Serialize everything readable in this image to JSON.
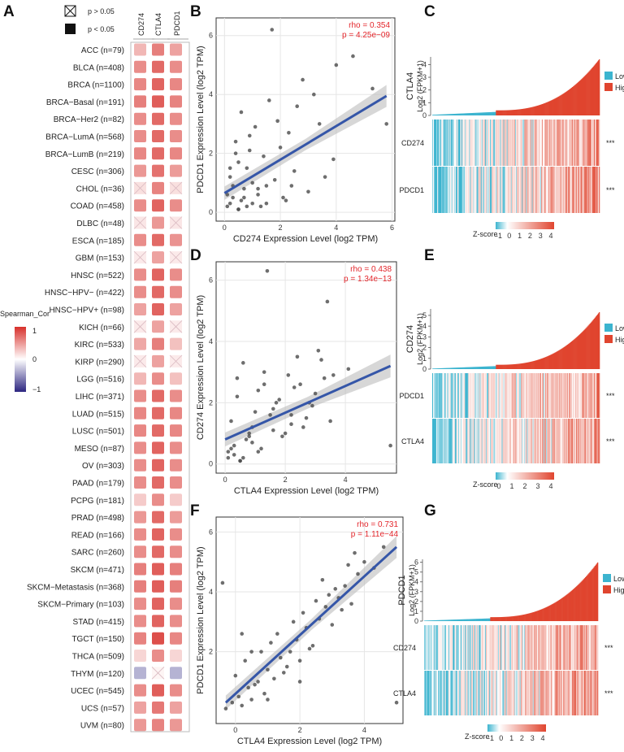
{
  "panels": {
    "A": {
      "letter": "A",
      "legend_ns": "p > 0.05",
      "legend_sig": "p <  0.05",
      "color_title": "Spearman_Cor",
      "color_ticks": [
        "1",
        "0",
        "−1"
      ],
      "genes": [
        "CD274",
        "CTLA4",
        "PDCD1"
      ],
      "cancers": [
        "ACC (n=79)",
        "BLCA (n=408)",
        "BRCA (n=1100)",
        "BRCA−Basal (n=191)",
        "BRCA−Her2 (n=82)",
        "BRCA−LumA (n=568)",
        "BRCA−LumB (n=219)",
        "CESC (n=306)",
        "CHOL (n=36)",
        "COAD (n=458)",
        "DLBC (n=48)",
        "ESCA (n=185)",
        "GBM (n=153)",
        "HNSC (n=522)",
        "HNSC−HPV− (n=422)",
        "HNSC−HPV+ (n=98)",
        "KICH (n=66)",
        "KIRC (n=533)",
        "KIRP (n=290)",
        "LGG (n=516)",
        "LIHC (n=371)",
        "LUAD (n=515)",
        "LUSC (n=501)",
        "MESO (n=87)",
        "OV (n=303)",
        "PAAD (n=179)",
        "PCPG (n=181)",
        "PRAD (n=498)",
        "READ (n=166)",
        "SARC (n=260)",
        "SKCM (n=471)",
        "SKCM−Metastasis (n=368)",
        "SKCM−Primary (n=103)",
        "STAD (n=415)",
        "TGCT (n=150)",
        "THCA (n=509)",
        "THYM (n=120)",
        "UCEC (n=545)",
        "UCS (n=57)",
        "UVM (n=80)"
      ],
      "chart_data": {
        "type": "heatmap",
        "rows": [
          "ACC",
          "BLCA",
          "BRCA",
          "BRCA-Basal",
          "BRCA-Her2",
          "BRCA-LumA",
          "BRCA-LumB",
          "CESC",
          "CHOL",
          "COAD",
          "DLBC",
          "ESCA",
          "GBM",
          "HNSC",
          "HNSC-HPV-",
          "HNSC-HPV+",
          "KICH",
          "KIRC",
          "KIRP",
          "LGG",
          "LIHC",
          "LUAD",
          "LUSC",
          "MESO",
          "OV",
          "PAAD",
          "PCPG",
          "PRAD",
          "READ",
          "SARC",
          "SKCM",
          "SKCM-Metastasis",
          "SKCM-Primary",
          "STAD",
          "TGCT",
          "THCA",
          "THYM",
          "UCEC",
          "UCS",
          "UVM"
        ],
        "cols": [
          "CD274",
          "CTLA4",
          "PDCD1"
        ],
        "values": [
          [
            0.35,
            0.62,
            0.45
          ],
          [
            0.55,
            0.72,
            0.55
          ],
          [
            0.58,
            0.75,
            0.58
          ],
          [
            0.62,
            0.78,
            0.6
          ],
          [
            0.55,
            0.72,
            0.55
          ],
          [
            0.55,
            0.72,
            0.55
          ],
          [
            0.58,
            0.72,
            0.58
          ],
          [
            0.5,
            0.68,
            0.48
          ],
          [
            0.15,
            0.6,
            0.15
          ],
          [
            0.55,
            0.75,
            0.55
          ],
          [
            0.12,
            0.5,
            0.12
          ],
          [
            0.55,
            0.72,
            0.52
          ],
          [
            0.1,
            0.45,
            0.1
          ],
          [
            0.55,
            0.75,
            0.55
          ],
          [
            0.55,
            0.72,
            0.55
          ],
          [
            0.45,
            0.75,
            0.45
          ],
          [
            0.1,
            0.45,
            0.1
          ],
          [
            0.42,
            0.62,
            0.3
          ],
          [
            0.1,
            0.45,
            0.1
          ],
          [
            0.35,
            0.55,
            0.3
          ],
          [
            0.55,
            0.72,
            0.55
          ],
          [
            0.58,
            0.72,
            0.58
          ],
          [
            0.58,
            0.72,
            0.58
          ],
          [
            0.55,
            0.75,
            0.55
          ],
          [
            0.55,
            0.75,
            0.55
          ],
          [
            0.55,
            0.72,
            0.55
          ],
          [
            0.25,
            0.55,
            0.25
          ],
          [
            0.5,
            0.72,
            0.48
          ],
          [
            0.55,
            0.75,
            0.55
          ],
          [
            0.55,
            0.72,
            0.55
          ],
          [
            0.62,
            0.78,
            0.62
          ],
          [
            0.62,
            0.78,
            0.62
          ],
          [
            0.55,
            0.75,
            0.55
          ],
          [
            0.55,
            0.75,
            0.55
          ],
          [
            0.6,
            0.85,
            0.58
          ],
          [
            0.2,
            0.55,
            0.2
          ],
          [
            -0.35,
            0.05,
            -0.35
          ],
          [
            0.55,
            0.78,
            0.55
          ],
          [
            0.45,
            0.65,
            0.45
          ],
          [
            0.5,
            0.6,
            0.5
          ]
        ],
        "not_significant": [
          [
            8,
            0
          ],
          [
            8,
            2
          ],
          [
            10,
            0
          ],
          [
            10,
            2
          ],
          [
            12,
            0
          ],
          [
            12,
            2
          ],
          [
            16,
            0
          ],
          [
            16,
            2
          ],
          [
            18,
            0
          ],
          [
            18,
            2
          ],
          [
            36,
            1
          ]
        ],
        "color_range": [
          -1,
          1
        ]
      }
    },
    "B": {
      "letter": "B",
      "rho": "rho = 0.354",
      "p": "p = 4.25e−09",
      "xlabel": "CD274 Expression Level (log2 TPM)",
      "ylabel": "PDCD1 Expression Level (log2 TPM)",
      "xticks": [
        "0",
        "2",
        "4",
        "6"
      ],
      "yticks": [
        "0",
        "2",
        "4",
        "6"
      ],
      "chart_data": {
        "type": "scatter",
        "xlim": [
          -0.3,
          6.1
        ],
        "ylim": [
          -0.3,
          6.6
        ],
        "fit": {
          "x0": 0,
          "y0": 0.65,
          "x1": 5.8,
          "y1": 3.95
        },
        "x": [
          0.1,
          0.3,
          0.5,
          0.7,
          1.0,
          0.2,
          0.4,
          0.8,
          1.2,
          1.5,
          0.6,
          0.9,
          1.8,
          2.2,
          0.3,
          0.5,
          1.1,
          1.6,
          2.0,
          2.5,
          3.0,
          0.2,
          0.7,
          1.3,
          2.8,
          3.4,
          4.0,
          0.4,
          1.0,
          1.9,
          2.3,
          3.6,
          0.1,
          0.6,
          1.4,
          2.6,
          4.6,
          5.3,
          5.8,
          0.8,
          1.7,
          3.2,
          3.9,
          0.5,
          1.2,
          2.1,
          0.2,
          0.9,
          1.5,
          2.4
        ],
        "y": [
          0.2,
          0.5,
          0.1,
          0.8,
          0.3,
          1.2,
          2.0,
          1.5,
          0.6,
          0.9,
          3.4,
          2.6,
          1.1,
          0.4,
          0.9,
          1.7,
          2.9,
          3.8,
          2.2,
          1.4,
          0.7,
          0.3,
          0.5,
          0.2,
          4.5,
          3.0,
          5.0,
          2.4,
          1.0,
          3.1,
          2.7,
          1.2,
          0.6,
          0.4,
          1.9,
          3.6,
          5.3,
          4.2,
          3.0,
          0.2,
          6.2,
          4.0,
          1.8,
          0.1,
          0.8,
          0.5,
          1.5,
          2.1,
          0.3,
          0.9
        ]
      }
    },
    "C": {
      "letter": "C",
      "gene_title": "CTLA4",
      "ylabel": "Log2 (FPKM+1)",
      "yticks": [
        "0",
        "1",
        "2",
        "3",
        "4"
      ],
      "legend_low": "Low",
      "legend_high": "High",
      "rows": [
        "CD274",
        "PDCD1"
      ],
      "stars": [
        "***",
        "***"
      ],
      "zscore_label": "Z-score",
      "zscore_ticks": [
        "-1",
        "0",
        "1",
        "2",
        "3",
        "4"
      ],
      "chart_data": {
        "type": "bar",
        "ymax": 4.6,
        "low_fraction": 0.38,
        "top": 4.5
      }
    },
    "D": {
      "letter": "D",
      "rho": "rho = 0.438",
      "p": "p = 1.34e−13",
      "xlabel": "CTLA4 Expression Level (log2 TPM)",
      "ylabel": "CD274 Expression Level (log2 TPM)",
      "xticks": [
        "0",
        "2",
        "4"
      ],
      "yticks": [
        "0",
        "2",
        "4",
        "6"
      ],
      "chart_data": {
        "type": "scatter",
        "xlim": [
          -0.3,
          5.7
        ],
        "ylim": [
          -0.3,
          6.6
        ],
        "fit": {
          "x0": 0,
          "y0": 0.8,
          "x1": 5.5,
          "y1": 3.2
        },
        "x": [
          0.1,
          0.3,
          0.5,
          0.8,
          1.1,
          0.2,
          0.4,
          0.9,
          1.3,
          1.6,
          0.6,
          1.0,
          1.9,
          2.3,
          2.7,
          3.1,
          0.3,
          1.2,
          1.7,
          2.1,
          2.6,
          3.3,
          0.5,
          1.5,
          2.4,
          3.0,
          3.6,
          4.1,
          0.7,
          1.8,
          2.9,
          3.4,
          0.2,
          0.9,
          1.4,
          2.2,
          5.5,
          3.2,
          0.4,
          1.1,
          2.0,
          2.8,
          0.1,
          0.6,
          1.6,
          2.5,
          3.5,
          0.8,
          1.3,
          2.2
        ],
        "y": [
          0.2,
          0.6,
          0.1,
          1.0,
          0.4,
          1.4,
          2.2,
          0.7,
          2.6,
          1.1,
          3.3,
          1.7,
          0.9,
          2.5,
          1.5,
          3.7,
          0.3,
          0.5,
          2.0,
          2.9,
          1.2,
          2.8,
          0.1,
          1.6,
          3.5,
          2.3,
          2.9,
          3.1,
          0.8,
          2.1,
          1.9,
          5.3,
          0.5,
          1.2,
          6.3,
          1.6,
          0.6,
          3.4,
          2.8,
          2.4,
          1.0,
          2.0,
          0.4,
          0.2,
          1.8,
          2.6,
          1.4,
          0.9,
          3.0,
          1.3
        ]
      }
    },
    "E": {
      "letter": "E",
      "gene_title": "CD274",
      "ylabel": "Log2 (FPKM+1)",
      "yticks": [
        "0",
        "1",
        "2",
        "3",
        "4",
        "5"
      ],
      "legend_low": "Low",
      "legend_high": "High",
      "rows": [
        "PDCD1",
        "CTLA4"
      ],
      "stars": [
        "***",
        "***"
      ],
      "zscore_label": "Z-score",
      "zscore_ticks": [
        "0",
        "1",
        "2",
        "3",
        "4"
      ],
      "chart_data": {
        "type": "bar",
        "ymax": 5.6,
        "low_fraction": 0.38,
        "top": 5.4
      }
    },
    "F": {
      "letter": "F",
      "rho": "rho = 0.731",
      "p": "p = 1.11e−44",
      "xlabel": "CTLA4 Expression Level (log2 TPM)",
      "ylabel": "PDCD1 Expression Level (log2 TPM)",
      "xticks": [
        "0",
        "2",
        "4"
      ],
      "yticks": [
        "2",
        "4",
        "6"
      ],
      "chart_data": {
        "type": "scatter",
        "xlim": [
          -0.6,
          5.2
        ],
        "ylim": [
          -0.4,
          6.5
        ],
        "fit": {
          "x0": -0.3,
          "y0": 0.3,
          "x1": 5.0,
          "y1": 5.5
        },
        "x": [
          -0.3,
          -0.1,
          0.1,
          0.2,
          0.4,
          0.5,
          0.7,
          0.9,
          1.0,
          1.2,
          1.4,
          1.5,
          1.7,
          1.9,
          2.0,
          2.2,
          2.4,
          2.6,
          2.8,
          3.0,
          3.2,
          3.4,
          3.6,
          3.8,
          4.0,
          4.3,
          4.6,
          5.0,
          0.0,
          0.3,
          0.6,
          0.8,
          1.1,
          1.3,
          1.6,
          1.8,
          2.1,
          2.3,
          2.5,
          2.7,
          2.9,
          3.1,
          3.3,
          3.5,
          3.7,
          0.2,
          0.5,
          -0.4,
          1.0,
          2.0
        ],
        "y": [
          0.1,
          0.3,
          0.5,
          0.2,
          0.8,
          0.4,
          1.0,
          0.6,
          1.4,
          1.1,
          1.8,
          1.3,
          2.0,
          2.4,
          1.7,
          2.8,
          2.2,
          3.1,
          3.5,
          2.9,
          3.8,
          4.2,
          3.6,
          4.6,
          5.0,
          4.8,
          5.5,
          0.3,
          1.2,
          1.7,
          0.9,
          2.0,
          2.3,
          2.6,
          1.5,
          3.0,
          3.3,
          2.1,
          3.7,
          4.4,
          3.9,
          4.1,
          3.4,
          4.9,
          5.3,
          2.6,
          2.0,
          4.3,
          0.4,
          1.0
        ]
      }
    },
    "G": {
      "letter": "G",
      "gene_title": "PDCD1",
      "ylabel": "Log2 (FPKM+1)",
      "yticks": [
        "0",
        "1",
        "2",
        "3",
        "4",
        "5",
        "6"
      ],
      "legend_low": "Low",
      "legend_high": "High",
      "rows": [
        "CD274",
        "CTLA4"
      ],
      "stars": [
        "***",
        "***"
      ],
      "zscore_label": "Z-score",
      "zscore_ticks": [
        "-1",
        "0",
        "1",
        "2",
        "3",
        "4"
      ],
      "chart_data": {
        "type": "bar",
        "ymax": 6.3,
        "low_fraction": 0.38,
        "top": 6.1
      }
    }
  },
  "colors": {
    "pos": "#d7302b",
    "neg": "#2c2580",
    "low": "#3cb4cf",
    "high": "#e0452f",
    "fit": "#3556a8",
    "stat": "#e3262b"
  }
}
